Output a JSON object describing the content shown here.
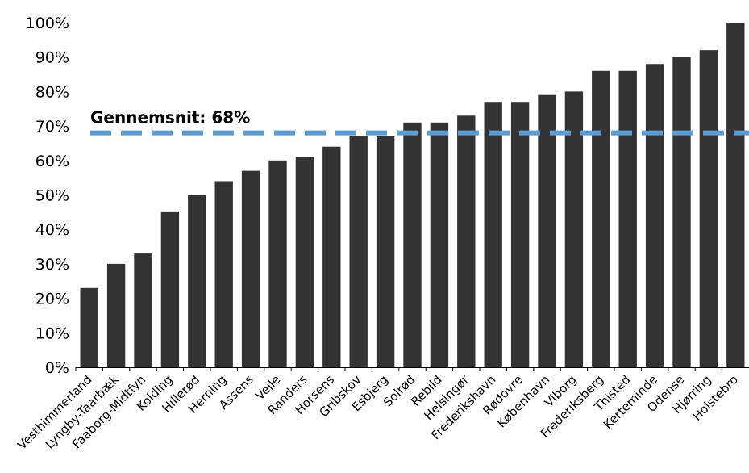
{
  "chart_data": {
    "type": "bar",
    "title": "",
    "xlabel": "",
    "ylabel": "",
    "ylim": [
      0,
      100
    ],
    "ytick_step": 10,
    "y_format": "percent",
    "grid": false,
    "bar_color": "#333333",
    "categories": [
      "Vesthimmerland",
      "Lyngby-Taarbæk",
      "Faaborg-Midtfyn",
      "Kolding",
      "Hillerød",
      "Herning",
      "Assens",
      "Vejle",
      "Randers",
      "Horsens",
      "Gribskov",
      "Esbjerg",
      "Solrød",
      "Rebild",
      "Helsingør",
      "Frederikshavn",
      "Rødovre",
      "København",
      "Viborg",
      "Frederiksberg",
      "Thisted",
      "Kerteminde",
      "Odense",
      "Hjørring",
      "Holstebro"
    ],
    "values": [
      23,
      30,
      33,
      45,
      50,
      54,
      57,
      60,
      61,
      64,
      67,
      67,
      71,
      71,
      73,
      77,
      77,
      79,
      80,
      86,
      86,
      88,
      90,
      92,
      100
    ],
    "reference_line": {
      "label": "Gennemsnit: 68%",
      "value": 68,
      "color": "#5b9bd5",
      "style": "dashed"
    }
  }
}
